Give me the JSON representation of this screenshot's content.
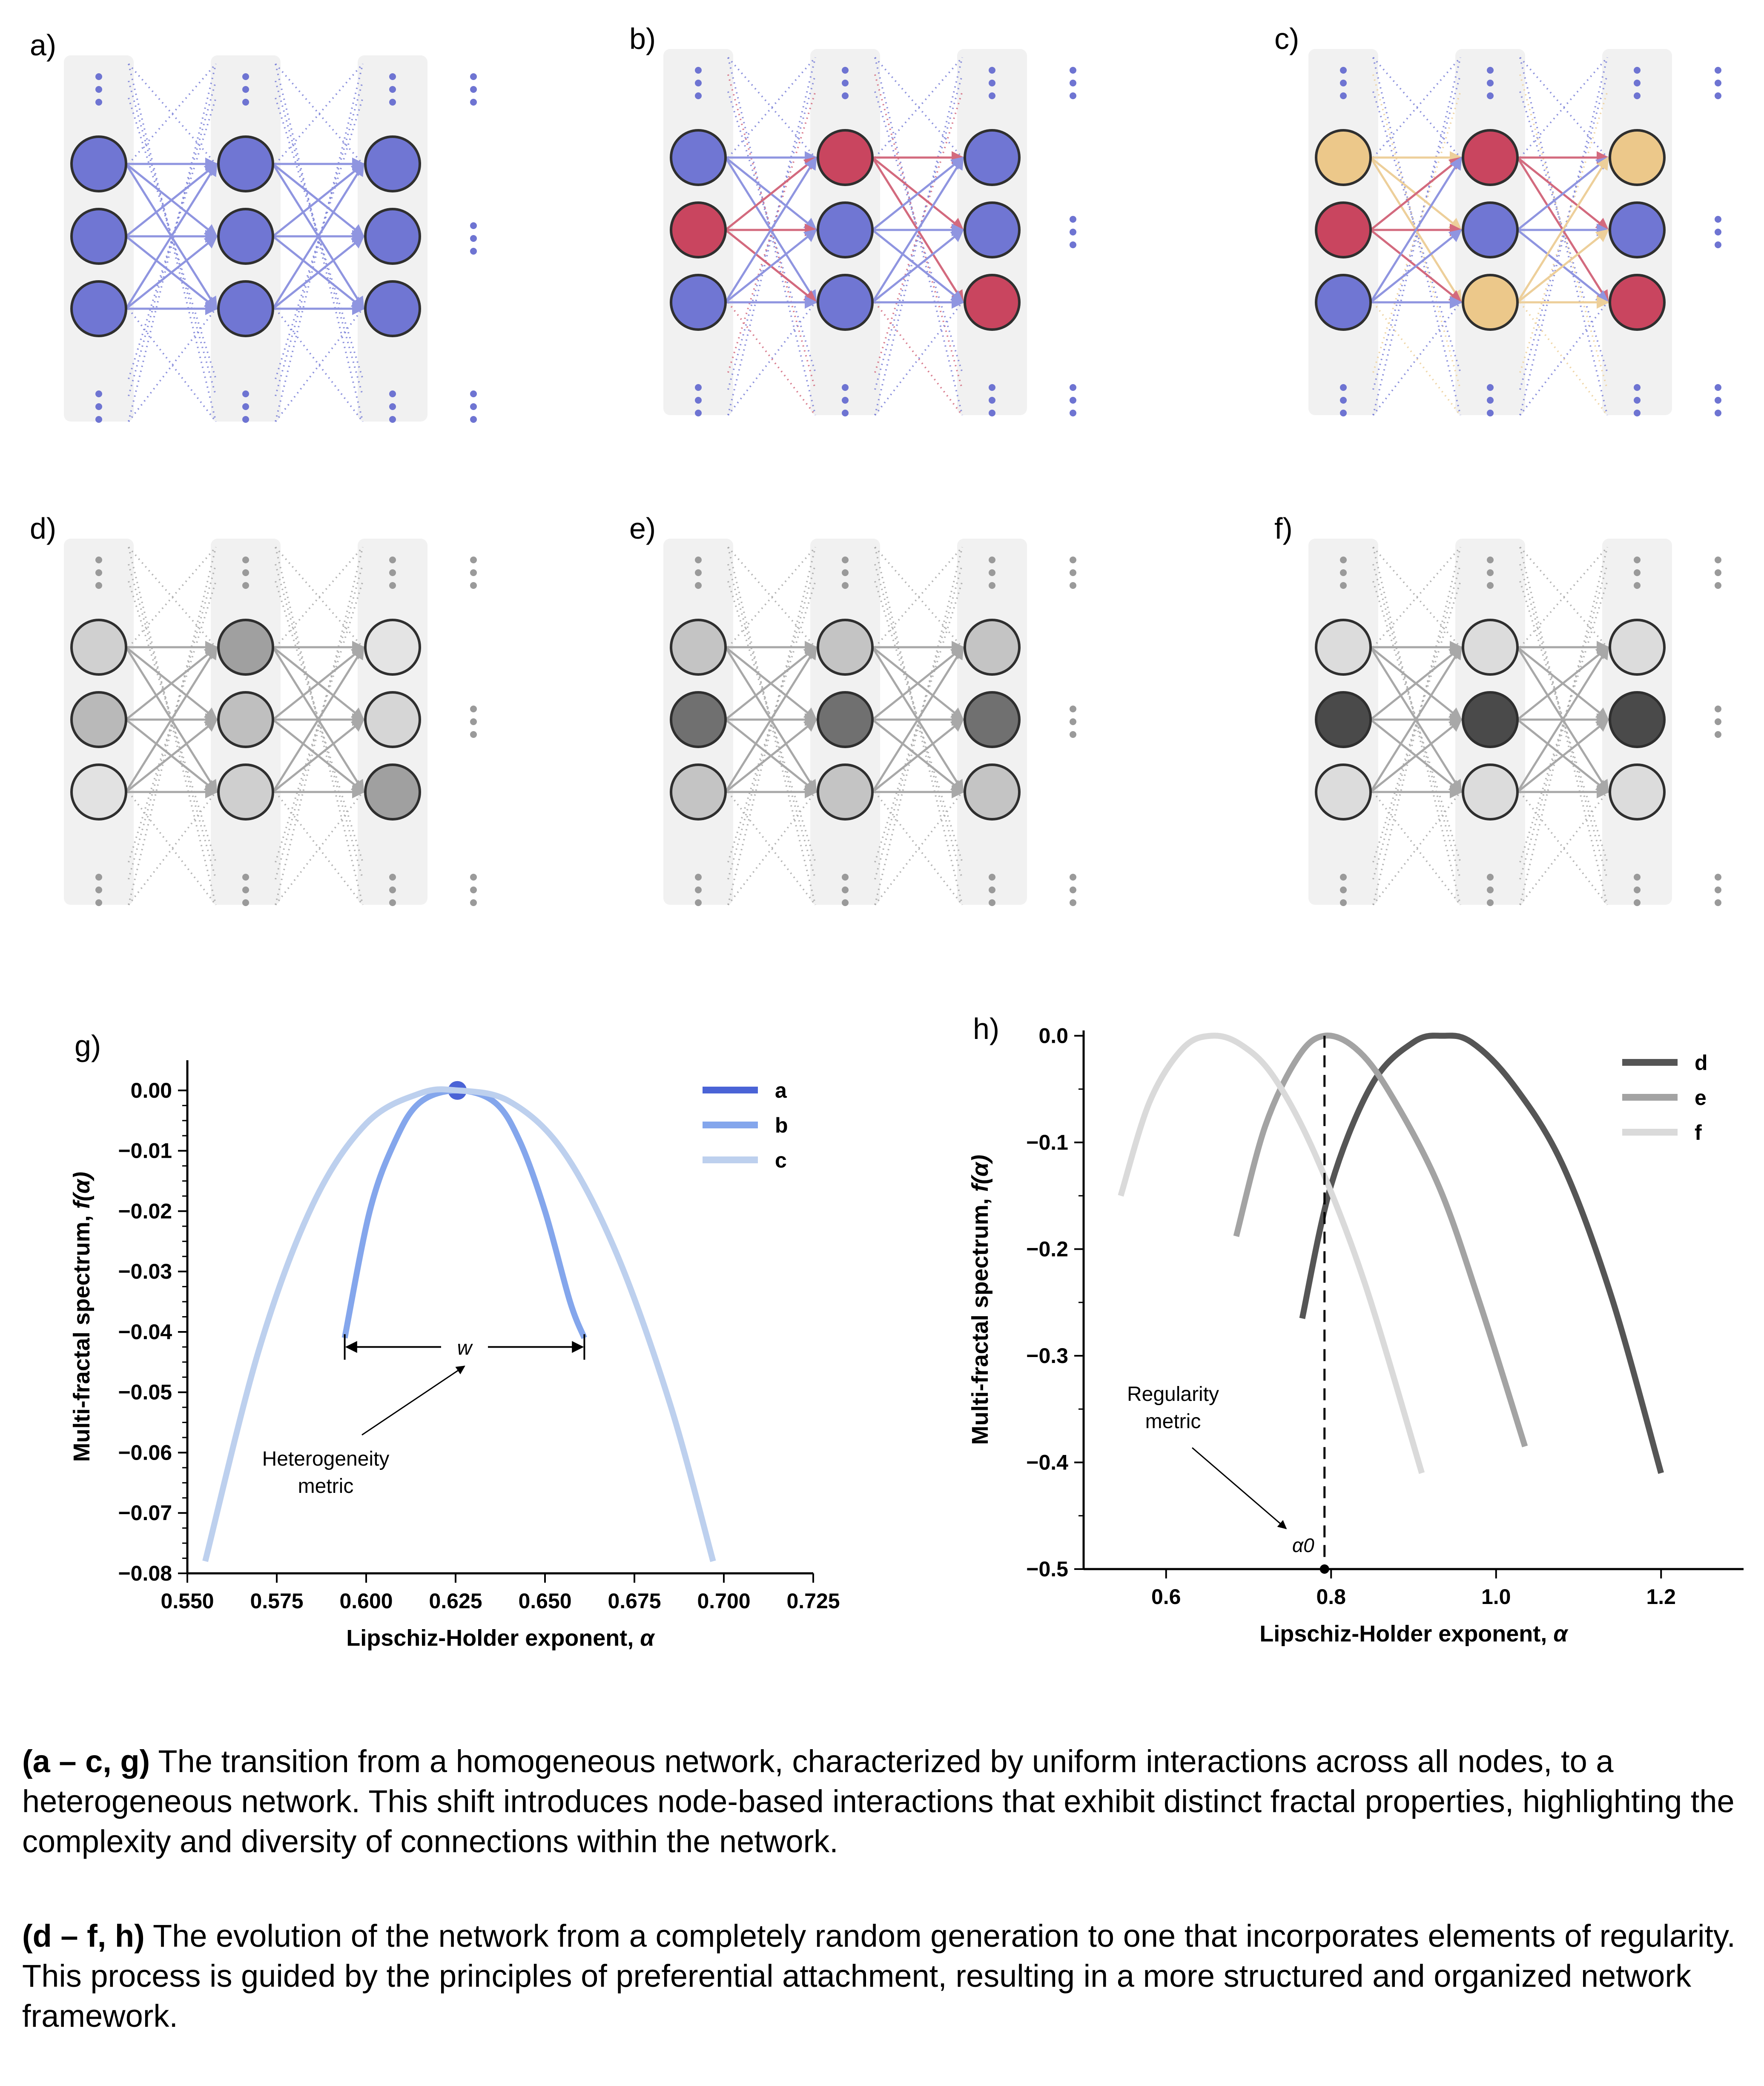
{
  "panels": [
    {
      "label": "a)",
      "colors": [
        [
          "#7076d3",
          "#7076d3",
          "#7076d3"
        ],
        [
          "#7076d3",
          "#7076d3",
          "#7076d3"
        ],
        [
          "#7076d3",
          "#7076d3",
          "#7076d3"
        ]
      ],
      "edge_color": "#7a80d8",
      "mode": "net"
    },
    {
      "label": "b)",
      "colors": [
        [
          "#7076d3",
          "#c9455f",
          "#7076d3"
        ],
        [
          "#c9455f",
          "#7076d3",
          "#7076d3"
        ],
        [
          "#7076d3",
          "#7076d3",
          "#c9455f"
        ]
      ],
      "edge_color": "#7a80d8",
      "mode": "net"
    },
    {
      "label": "c)",
      "colors": [
        [
          "#ecc88a",
          "#c9455f",
          "#ecc88a"
        ],
        [
          "#c9455f",
          "#7076d3",
          "#7076d3"
        ],
        [
          "#7076d3",
          "#ecc88a",
          "#c9455f"
        ]
      ],
      "edge_color": "#7a80d8",
      "mode": "net"
    },
    {
      "label": "d)",
      "colors": [
        [
          "#d0d0d0",
          "#a0a0a0",
          "#e4e4e4"
        ],
        [
          "#b9b9b9",
          "#bfbfbf",
          "#d6d6d6"
        ],
        [
          "#e2e2e2",
          "#cfcfcf",
          "#a0a0a0"
        ]
      ],
      "edge_color": "#a8a8a8",
      "mode": "gray"
    },
    {
      "label": "e)",
      "colors": [
        [
          "#c4c4c4",
          "#c4c4c4",
          "#c4c4c4"
        ],
        [
          "#707070",
          "#707070",
          "#707070"
        ],
        [
          "#c4c4c4",
          "#c4c4c4",
          "#c4c4c4"
        ]
      ],
      "edge_color": "#a8a8a8",
      "mode": "gray"
    },
    {
      "label": "f)",
      "colors": [
        [
          "#dcdcdc",
          "#dcdcdc",
          "#dcdcdc"
        ],
        [
          "#4a4a4a",
          "#4a4a4a",
          "#4a4a4a"
        ],
        [
          "#dcdcdc",
          "#dcdcdc",
          "#dcdcdc"
        ]
      ],
      "edge_color": "#a8a8a8",
      "mode": "gray"
    }
  ],
  "chart_data": [
    {
      "type": "line",
      "panel_label": "g)",
      "xlabel": "Lipschiz-Holder exponent, ",
      "xlabel_symbol": "α",
      "ylabel": "Multi-fractal spectrum, ",
      "ylabel_symbol": "f(α)",
      "xlim": [
        0.55,
        0.725
      ],
      "ylim": [
        -0.08,
        0.005
      ],
      "xticks": [
        "0.550",
        "0.575",
        "0.600",
        "0.625",
        "0.650",
        "0.675",
        "0.700",
        "0.725"
      ],
      "yticks": [
        "0.00",
        "−0.01",
        "−0.02",
        "−0.03",
        "−0.04",
        "−0.05",
        "−0.06",
        "−0.07",
        "−0.08"
      ],
      "legend": [
        "a",
        "b",
        "c"
      ],
      "series": [
        {
          "name": "a",
          "color": "#4a63d6",
          "x": [
            0.6255
          ],
          "y": [
            0.0
          ]
        },
        {
          "name": "b",
          "color": "#84a6ec",
          "x": [
            0.594,
            0.601,
            0.608,
            0.615,
            0.6255,
            0.636,
            0.643,
            0.65,
            0.657,
            0.661
          ],
          "y": [
            -0.041,
            -0.02,
            -0.0085,
            -0.002,
            0.0,
            -0.002,
            -0.0085,
            -0.02,
            -0.035,
            -0.041
          ]
        },
        {
          "name": "c",
          "color": "#bdd0ee",
          "x": [
            0.555,
            0.57,
            0.585,
            0.6,
            0.615,
            0.6255,
            0.64,
            0.655,
            0.67,
            0.685,
            0.697
          ],
          "y": [
            -0.078,
            -0.043,
            -0.019,
            -0.0055,
            -0.0005,
            0.0,
            -0.0018,
            -0.01,
            -0.027,
            -0.052,
            -0.078
          ]
        }
      ],
      "annotations": {
        "width_label": "w",
        "metric_label": [
          "Heterogeneity",
          "metric"
        ]
      }
    },
    {
      "type": "line",
      "panel_label": "h)",
      "xlabel": "Lipschiz-Holder exponent, ",
      "xlabel_symbol": "α",
      "ylabel": "Multi-fractal spectrum, ",
      "ylabel_symbol": "f(α)",
      "xlim": [
        0.5,
        1.3
      ],
      "ylim": [
        -0.5,
        0.005
      ],
      "xticks": [
        "0.6",
        "0.8",
        "1.0",
        "1.2"
      ],
      "xtick_values": [
        0.6,
        0.8,
        1.0,
        1.2
      ],
      "yticks": [
        "0.0",
        "−0.1",
        "−0.2",
        "−0.3",
        "−0.4",
        "−0.5"
      ],
      "legend": [
        "d",
        "e",
        "f"
      ],
      "series": [
        {
          "name": "d",
          "color": "#555555",
          "x": [
            0.765,
            0.8,
            0.85,
            0.9,
            0.935,
            0.97,
            1.02,
            1.08,
            1.14,
            1.2
          ],
          "y": [
            -0.265,
            -0.14,
            -0.045,
            -0.006,
            0.0,
            -0.006,
            -0.045,
            -0.12,
            -0.245,
            -0.41
          ]
        },
        {
          "name": "e",
          "color": "#a3a3a3",
          "x": [
            0.685,
            0.72,
            0.76,
            0.792,
            0.83,
            0.87,
            0.93,
            0.98,
            1.035
          ],
          "y": [
            -0.188,
            -0.085,
            -0.02,
            0.0,
            -0.012,
            -0.052,
            -0.14,
            -0.25,
            -0.385
          ]
        },
        {
          "name": "f",
          "color": "#dadada",
          "x": [
            0.545,
            0.58,
            0.62,
            0.655,
            0.69,
            0.73,
            0.78,
            0.84,
            0.91
          ],
          "y": [
            -0.15,
            -0.062,
            -0.012,
            0.0,
            -0.008,
            -0.038,
            -0.11,
            -0.23,
            -0.41
          ]
        }
      ],
      "annotations": {
        "alpha0_x": 0.792,
        "alpha0_label": "α0",
        "metric_label": [
          "Regularity",
          "metric"
        ]
      }
    }
  ],
  "caption": {
    "p1_bold": "(a – c, g)",
    "p1_text": " The transition from a homogeneous network, characterized by uniform interactions across all nodes, to a heterogeneous network. This shift introduces node-based interactions that exhibit distinct fractal properties, highlighting the complexity and diversity of connections within the network.",
    "p2_bold": "(d – f, h)",
    "p2_text": " The evolution of the network from a completely random generation to one that incorporates elements of regularity. This process is guided by the principles of preferential attachment, resulting in a more structured and organized network framework."
  }
}
